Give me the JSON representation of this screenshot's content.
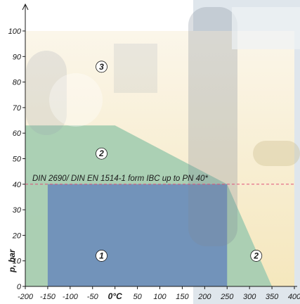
{
  "chart_data": {
    "type": "area",
    "ylabel": "p, bar",
    "xlim": [
      -200,
      400
    ],
    "ylim": [
      0,
      100
    ],
    "x_ticks": [
      "-200",
      "-150",
      "-100",
      "-50",
      "0°C",
      "50",
      "100",
      "150",
      "200",
      "250",
      "300",
      "350",
      "400"
    ],
    "y_ticks": [
      "0",
      "10",
      "20",
      "30",
      "40",
      "50",
      "60",
      "70",
      "80",
      "90",
      "100"
    ],
    "reference_line": {
      "label": "DIN 2690/ DIN EN 1514-1 form IBC up to PN 40*",
      "y": 40
    },
    "regions": [
      {
        "name": "3",
        "color": "#f6ebc6",
        "polygon": [
          [
            -200,
            0
          ],
          [
            -200,
            100
          ],
          [
            400,
            100
          ],
          [
            400,
            0
          ]
        ]
      },
      {
        "name": "2",
        "color": "#a6cdb2",
        "polygon": [
          [
            -200,
            0
          ],
          [
            -200,
            63
          ],
          [
            -150,
            63
          ],
          [
            -150,
            63
          ],
          [
            0,
            63
          ],
          [
            250,
            40
          ],
          [
            250,
            40
          ],
          [
            350,
            0
          ],
          [
            400,
            0
          ]
        ]
      },
      {
        "name": "1",
        "color": "#6f8fba",
        "polygon": [
          [
            -150,
            0
          ],
          [
            -150,
            40
          ],
          [
            250,
            40
          ],
          [
            250,
            0
          ]
        ]
      }
    ],
    "region_labels": [
      {
        "text": "3",
        "x": -30,
        "y": 86
      },
      {
        "text": "2",
        "x": -30,
        "y": 52
      },
      {
        "text": "1",
        "x": -30,
        "y": 12
      },
      {
        "text": "2",
        "x": 315,
        "y": 12
      }
    ]
  }
}
